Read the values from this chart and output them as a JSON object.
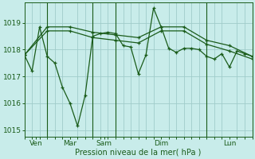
{
  "background_color": "#c8ecea",
  "grid_color": "#a0ccca",
  "line_color": "#1a5c1a",
  "marker_color": "#1a5c1a",
  "ylabel_ticks": [
    1015,
    1016,
    1017,
    1018,
    1019
  ],
  "xlabel": "Pression niveau de la mer( hPa )",
  "series": [
    {
      "x": [
        0,
        1,
        2,
        3,
        4,
        5,
        6,
        7,
        8,
        9,
        10,
        11,
        12,
        13,
        14,
        15,
        16,
        17,
        18,
        19,
        20,
        21,
        22,
        23,
        24,
        25,
        26,
        27,
        28,
        29,
        30
      ],
      "y": [
        1017.8,
        1017.2,
        1018.85,
        1017.75,
        1017.5,
        1016.6,
        1016.0,
        1015.15,
        1016.3,
        1018.5,
        1018.6,
        1018.65,
        1018.6,
        1018.15,
        1018.1,
        1017.1,
        1017.8,
        1019.55,
        1018.85,
        1018.05,
        1017.9,
        1018.05,
        1018.05,
        1018.0,
        1017.75,
        1017.65,
        1017.85,
        1017.35,
        1017.95,
        1017.85,
        1017.75
      ]
    },
    {
      "x": [
        0,
        3,
        6,
        9,
        12,
        15,
        18,
        21,
        24,
        27,
        30
      ],
      "y": [
        1017.8,
        1018.85,
        1018.85,
        1018.65,
        1018.55,
        1018.45,
        1018.85,
        1018.85,
        1018.35,
        1018.15,
        1017.75
      ]
    },
    {
      "x": [
        0,
        3,
        6,
        9,
        12,
        15,
        18,
        21,
        24,
        27,
        30
      ],
      "y": [
        1017.8,
        1018.7,
        1018.7,
        1018.45,
        1018.35,
        1018.25,
        1018.7,
        1018.7,
        1018.2,
        1017.95,
        1017.65
      ]
    }
  ],
  "xlim": [
    0,
    30
  ],
  "ylim": [
    1014.75,
    1019.75
  ],
  "day_sep_lines": [
    3,
    9,
    12,
    24,
    30
  ],
  "day_tick_positions": [
    1.5,
    6,
    10.5,
    18,
    27
  ],
  "day_tick_labels": [
    "Ven",
    "Mar",
    "Sam",
    "Dim",
    "Lun"
  ],
  "figsize": [
    3.2,
    2.0
  ],
  "dpi": 100
}
